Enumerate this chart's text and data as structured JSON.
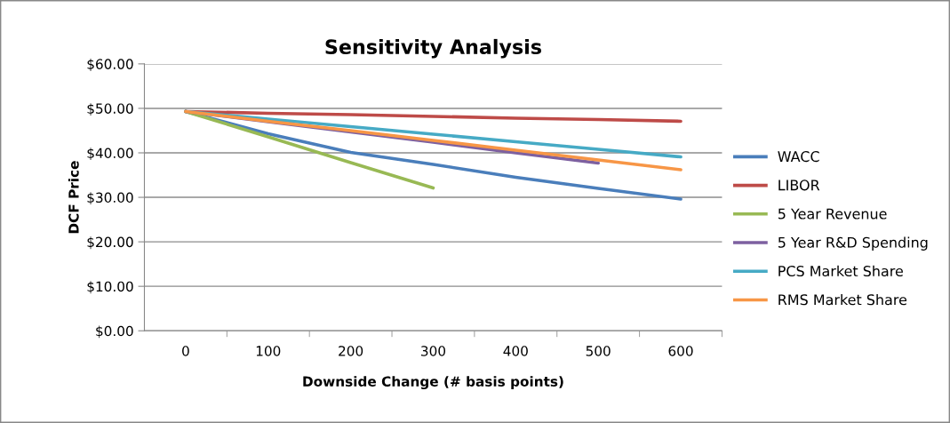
{
  "chart_data": {
    "type": "line",
    "title": "Sensitivity Analysis",
    "xlabel": "Downside Change (# basis points)",
    "ylabel": "DCF Price",
    "categories": [
      "0",
      "100",
      "200",
      "300",
      "400",
      "500",
      "600"
    ],
    "series": [
      {
        "name": "WACC",
        "color": "#4a7ebb",
        "values": [
          49.3,
          44.3,
          40.1,
          37.4,
          34.5,
          32.0,
          29.6
        ]
      },
      {
        "name": "LIBOR",
        "color": "#be4b48",
        "values": [
          49.3,
          48.9,
          48.6,
          48.2,
          47.8,
          47.5,
          47.1
        ]
      },
      {
        "name": "5 Year Revenue",
        "color": "#98b954",
        "values": [
          49.3,
          43.6,
          37.8,
          32.1,
          null,
          null,
          null
        ]
      },
      {
        "name": "5 Year R&D Spending",
        "color": "#7d60a0",
        "values": [
          49.3,
          47.0,
          44.7,
          42.4,
          40.0,
          37.7,
          null
        ]
      },
      {
        "name": "PCS Market Share",
        "color": "#46aac5",
        "values": [
          49.3,
          47.6,
          45.9,
          44.2,
          42.5,
          40.8,
          39.1
        ]
      },
      {
        "name": "RMS Market Share",
        "color": "#f79646",
        "values": [
          49.3,
          47.1,
          45.0,
          42.8,
          40.6,
          38.4,
          36.2
        ]
      }
    ],
    "ylim": [
      0,
      60
    ],
    "yticks": [
      {
        "value": 0,
        "label": "$0.00"
      },
      {
        "value": 10,
        "label": "$10.00"
      },
      {
        "value": 20,
        "label": "$20.00"
      },
      {
        "value": 30,
        "label": "$30.00"
      },
      {
        "value": 40,
        "label": "$40.00"
      },
      {
        "value": 50,
        "label": "$50.00"
      },
      {
        "value": 60,
        "label": "$60.00"
      }
    ],
    "grid": "y",
    "legend": "right",
    "marker": "none",
    "line_style": "solid"
  }
}
